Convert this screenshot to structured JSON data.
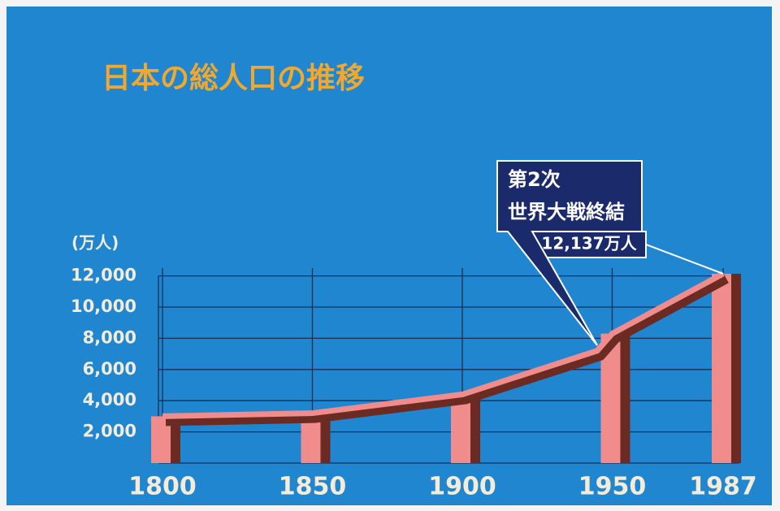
{
  "chart_data": {
    "type": "line",
    "title": "日本の総人口の推移",
    "y_unit": "(万人)",
    "x": [
      1800,
      1850,
      1900,
      1945,
      1950,
      1987
    ],
    "values": [
      3000,
      3200,
      4400,
      7200,
      8300,
      12137
    ],
    "value_labels": [
      null,
      null,
      null,
      null,
      null,
      "12,137万人"
    ],
    "color": "#f08c8c",
    "xlim": [
      1800,
      1987
    ],
    "xticks": [
      1800,
      1850,
      1900,
      1950,
      1987
    ],
    "ylim": [
      0,
      12500
    ],
    "yticks": [
      {
        "value": 2000,
        "label": "2,000"
      },
      {
        "value": 4000,
        "label": "4,000"
      },
      {
        "value": 6000,
        "label": "6,000"
      },
      {
        "value": 8000,
        "label": "8,000"
      },
      {
        "value": 10000,
        "label": "10,000"
      },
      {
        "value": 12000,
        "label": "12,000"
      }
    ],
    "grid": true,
    "annotation": [
      "第2次",
      "世界大戦終結"
    ]
  }
}
